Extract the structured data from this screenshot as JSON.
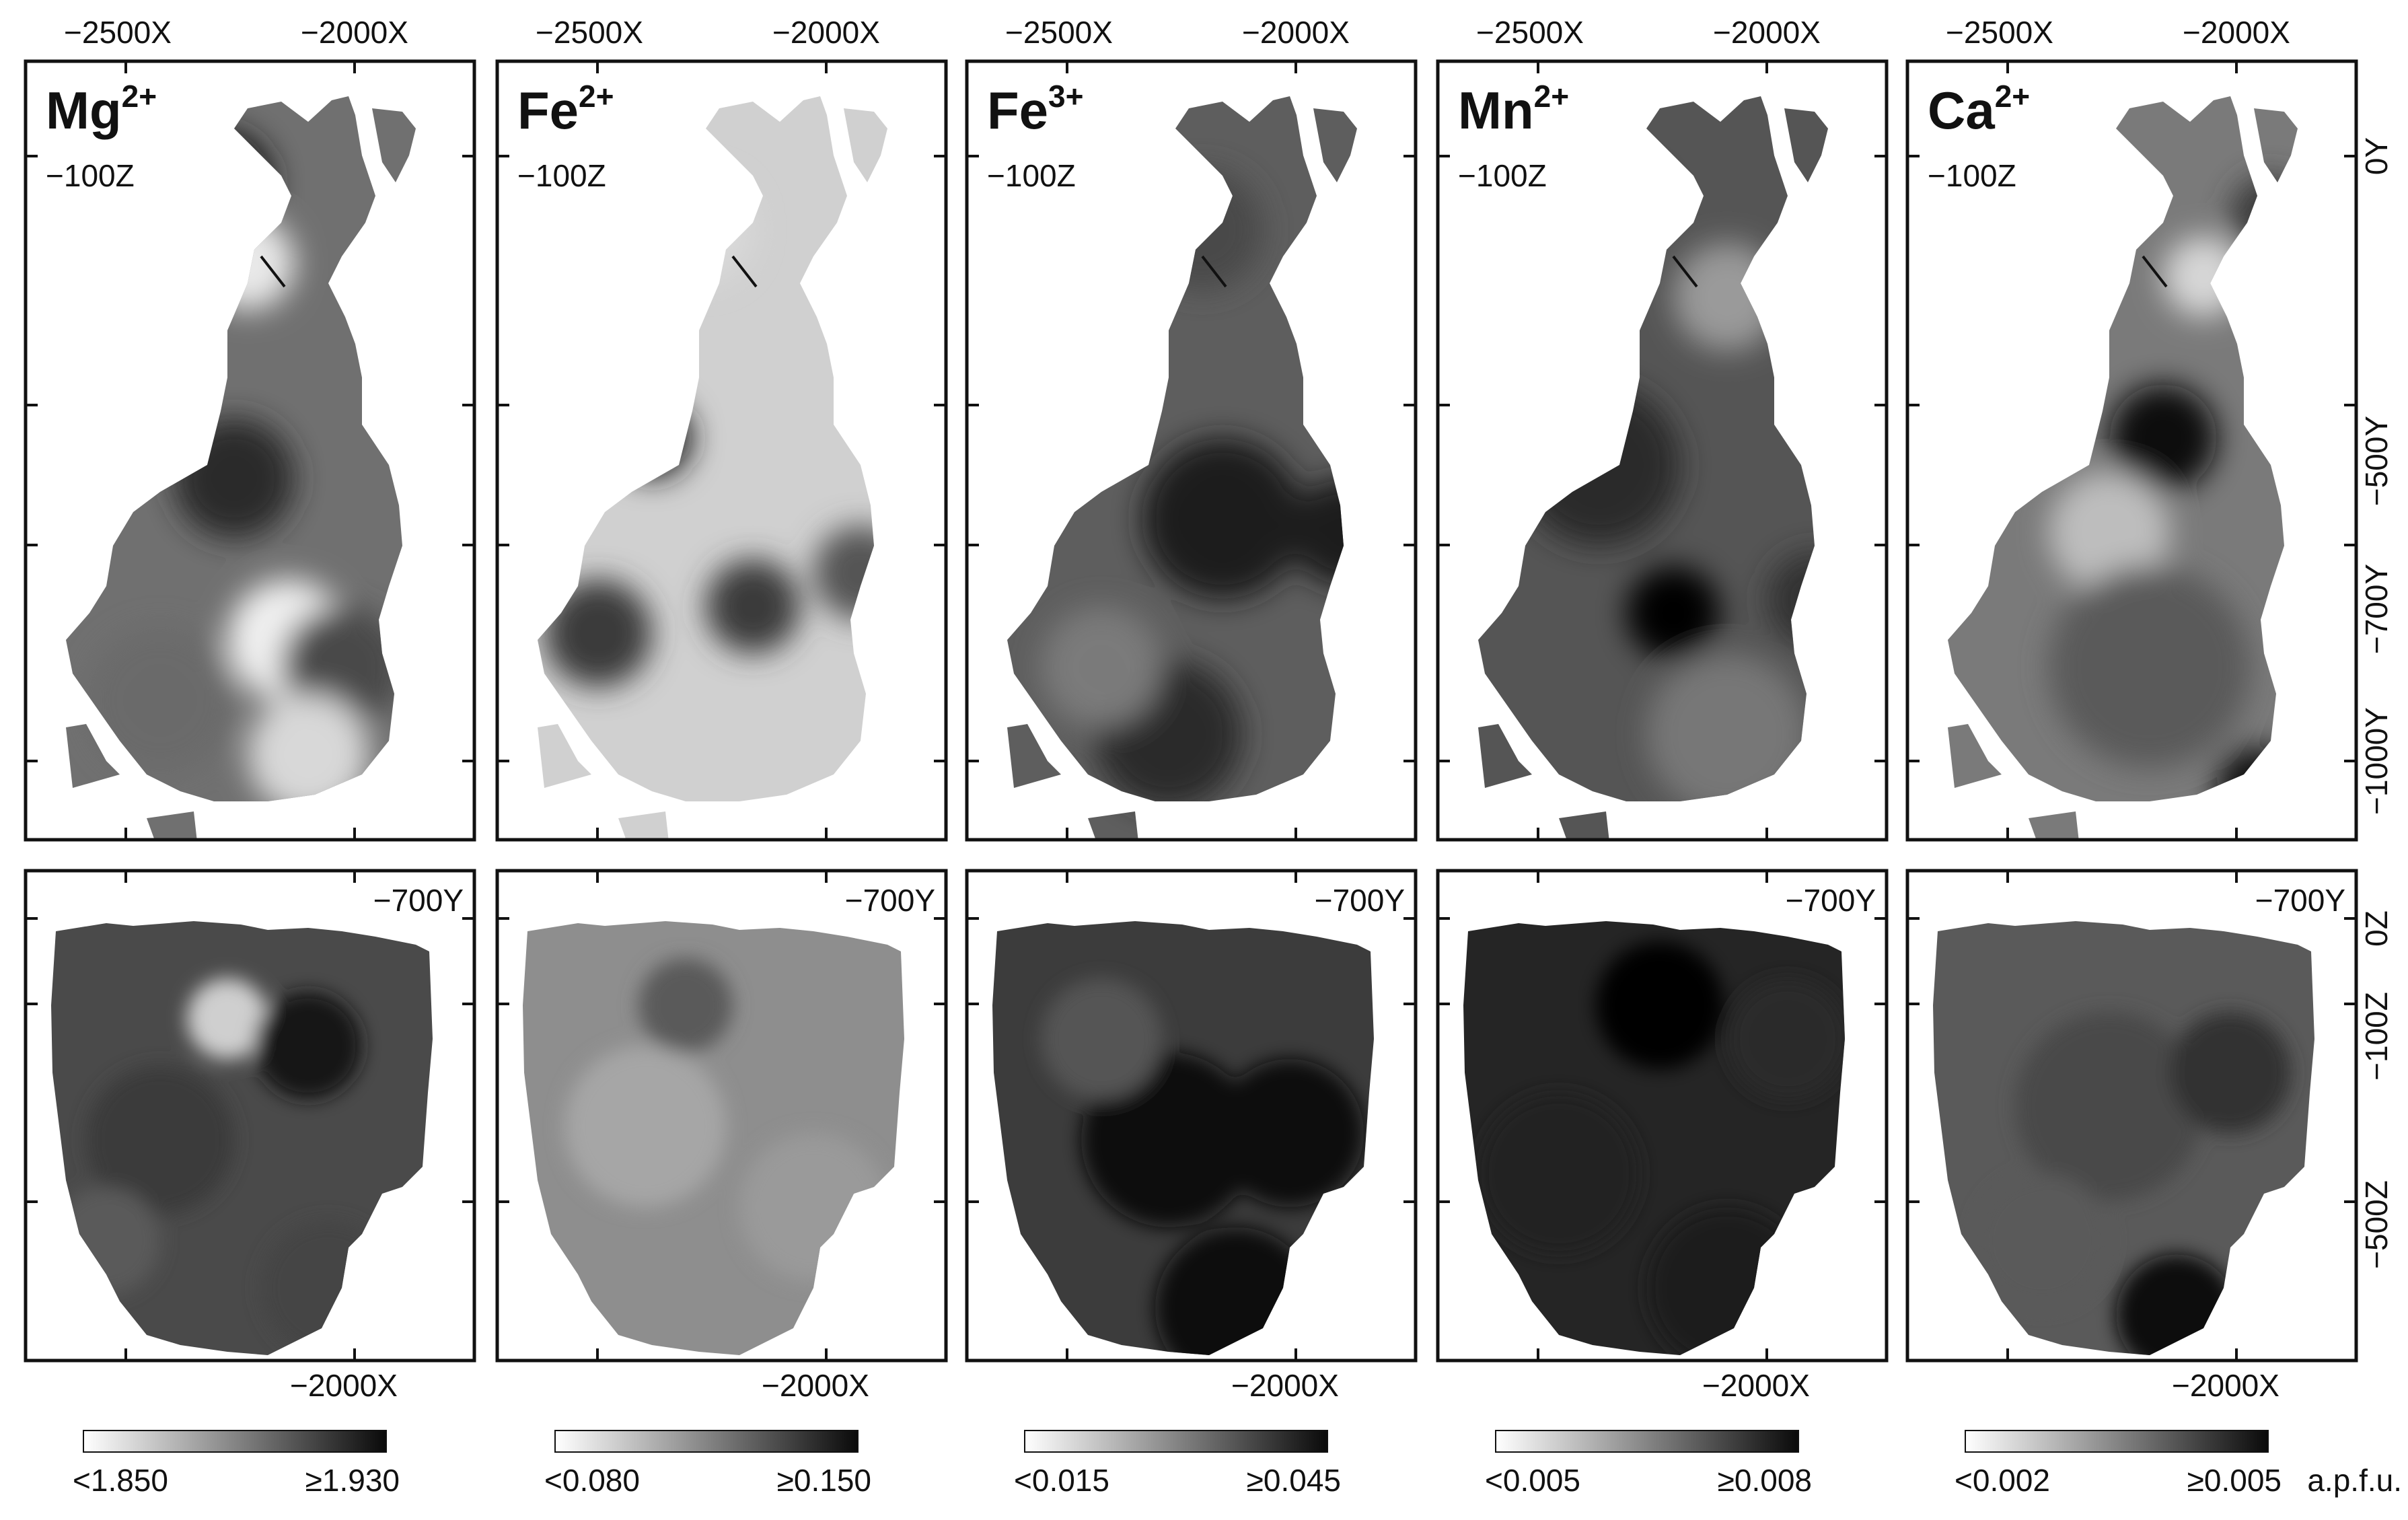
{
  "colors": {
    "frame": "#111111",
    "map_light": "#e6e6e6",
    "map_dark": "#0c0c0c"
  },
  "top_axis_ticks": [
    "−2500X",
    "−2000X"
  ],
  "bottom_axis_tick": "−2000X",
  "panels": [
    {
      "ion_base": "Mg",
      "ion_charge": "2+",
      "top_slice": "−100Z",
      "bottom_slice": "−700Y",
      "cb_min": "<1.850",
      "cb_max": "≥1.930",
      "unit": ""
    },
    {
      "ion_base": "Fe",
      "ion_charge": "2+",
      "top_slice": "−100Z",
      "bottom_slice": "−700Y",
      "cb_min": "<0.080",
      "cb_max": "≥0.150",
      "unit": ""
    },
    {
      "ion_base": "Fe",
      "ion_charge": "3+",
      "top_slice": "−100Z",
      "bottom_slice": "−700Y",
      "cb_min": "<0.015",
      "cb_max": "≥0.045",
      "unit": ""
    },
    {
      "ion_base": "Mn",
      "ion_charge": "2+",
      "top_slice": "−100Z",
      "bottom_slice": "−700Y",
      "cb_min": "<0.005",
      "cb_max": "≥0.008",
      "unit": ""
    },
    {
      "ion_base": "Ca",
      "ion_charge": "2+",
      "top_slice": "−100Z",
      "bottom_slice": "−700Y",
      "cb_min": "<0.002",
      "cb_max": "≥0.005",
      "unit": "a.p.f.u."
    }
  ],
  "right_axis_top": [
    "0Y",
    "−500Y",
    "−700Y",
    "−1000Y"
  ],
  "right_axis_bottom": [
    "0Z",
    "−100Z",
    "−500Z"
  ]
}
